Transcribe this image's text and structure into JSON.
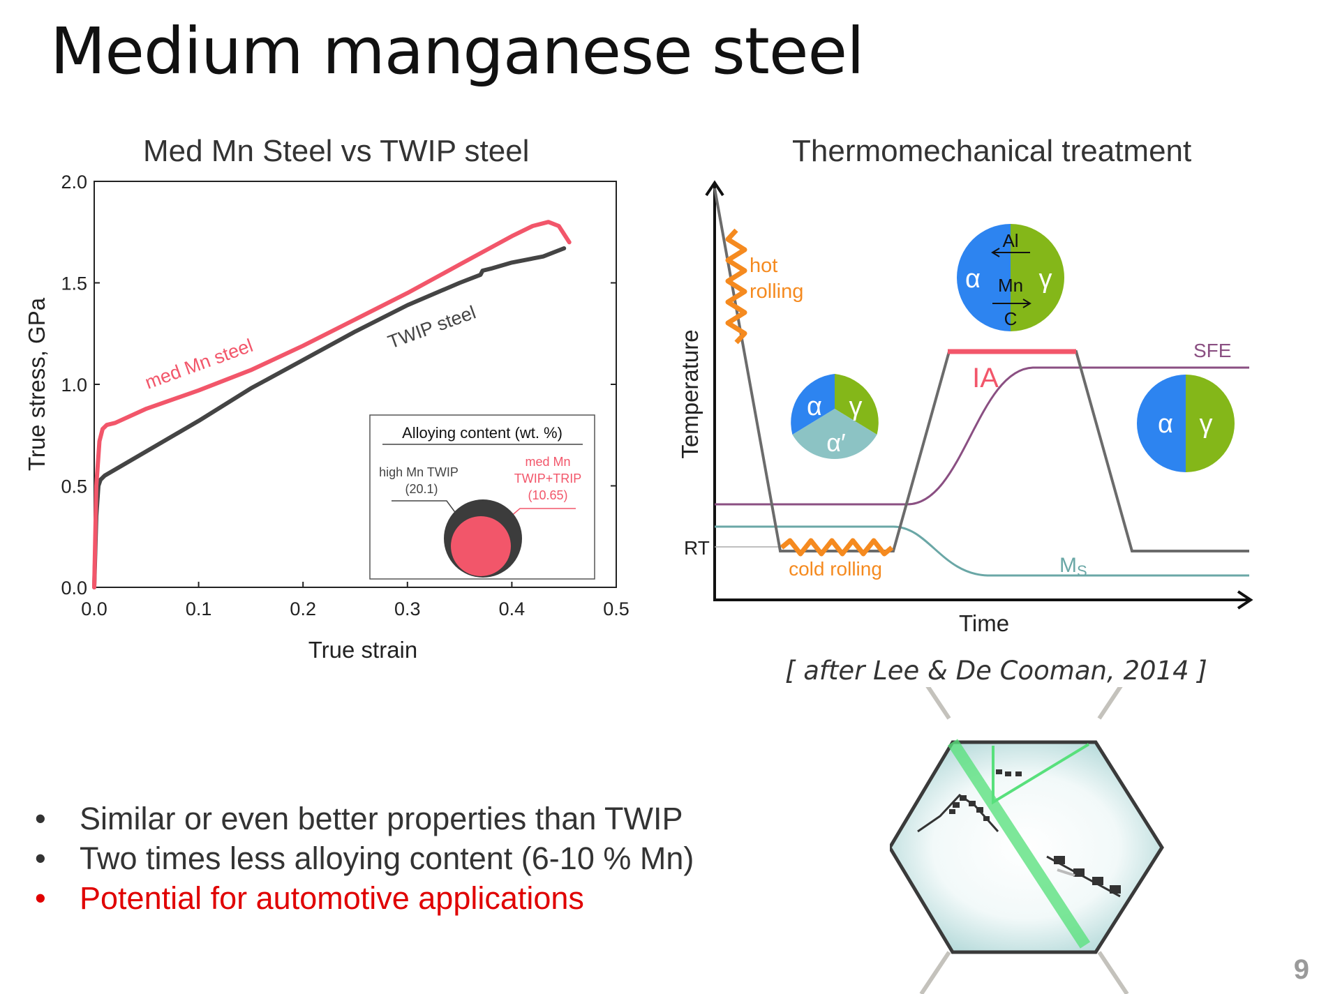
{
  "slide": {
    "title": "Medium manganese steel",
    "page_number": "9",
    "citation": "[ after Lee & De Cooman, 2014 ]",
    "bullets": [
      {
        "text": "Similar or even better properties than TWIP",
        "highlight": false
      },
      {
        "text": "Two times less alloying content (6-10 % Mn)",
        "highlight": false
      },
      {
        "text": "Potential for automotive applications",
        "highlight": true
      }
    ],
    "bullet_symbol": "•"
  },
  "colors": {
    "med_mn": "#f2566a",
    "twip": "#444444",
    "highlight": "#e00000",
    "orange": "#f58a1f",
    "purple": "#8a4f82",
    "teal": "#6aa7a6",
    "alpha": "#2d84f0",
    "gamma": "#84b719",
    "alpha_prime": "#8cc3c4"
  },
  "chart_data": [
    {
      "type": "line",
      "title": "Med Mn Steel vs TWIP steel",
      "xlabel": "True strain",
      "ylabel": "True stress, GPa",
      "xlim": [
        0,
        0.5
      ],
      "ylim": [
        0,
        2.0
      ],
      "xticks": [
        "0.0",
        "0.1",
        "0.2",
        "0.3",
        "0.4",
        "0.5"
      ],
      "yticks": [
        "0.0",
        "0.5",
        "1.0",
        "1.5",
        "2.0"
      ],
      "series": [
        {
          "name": "med Mn steel",
          "color": "#f2566a",
          "x": [
            0.0,
            0.002,
            0.005,
            0.008,
            0.012,
            0.02,
            0.05,
            0.1,
            0.15,
            0.2,
            0.25,
            0.3,
            0.35,
            0.4,
            0.42,
            0.435,
            0.445,
            0.455
          ],
          "y": [
            0.0,
            0.5,
            0.72,
            0.78,
            0.8,
            0.81,
            0.88,
            0.97,
            1.07,
            1.19,
            1.32,
            1.45,
            1.59,
            1.73,
            1.78,
            1.8,
            1.78,
            1.7
          ]
        },
        {
          "name": "TWIP steel",
          "color": "#444444",
          "x": [
            0.0,
            0.002,
            0.004,
            0.006,
            0.01,
            0.05,
            0.1,
            0.15,
            0.2,
            0.25,
            0.3,
            0.35,
            0.37,
            0.372,
            0.38,
            0.4,
            0.43,
            0.45
          ],
          "y": [
            0.0,
            0.35,
            0.5,
            0.53,
            0.55,
            0.67,
            0.82,
            0.98,
            1.12,
            1.26,
            1.39,
            1.5,
            1.54,
            1.56,
            1.57,
            1.6,
            1.63,
            1.67
          ]
        }
      ],
      "series_labels": [
        "med Mn steel",
        "TWIP steel"
      ],
      "inset": {
        "title": "Alloying content (wt. %)",
        "items": [
          {
            "name": "high Mn TWIP",
            "value": 20.1,
            "value_label": "(20.1)"
          },
          {
            "name": "med Mn",
            "name2": "TWIP+TRIP",
            "value": 10.65,
            "value_label": "(10.65)"
          }
        ]
      }
    },
    {
      "type": "diagram",
      "title": "Thermomechanical treatment",
      "xlabel": "Time",
      "ylabel": "Temperature",
      "labels": {
        "hot": "hot",
        "rolling": "rolling",
        "cold_rolling": "cold rolling",
        "ia": "IA",
        "sfe": "SFE",
        "ms_main": "M",
        "ms_sub": "S",
        "rt": "RT"
      },
      "phases": {
        "alpha": "α",
        "gamma": "γ",
        "alpha_prime": "α′",
        "al": "Al",
        "mn": "Mn",
        "c": "C"
      }
    }
  ]
}
